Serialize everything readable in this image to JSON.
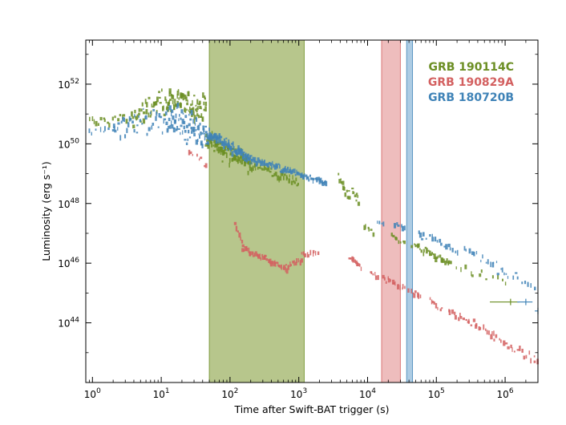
{
  "chart_data": {
    "type": "scatter",
    "title": "",
    "xlabel": "Time after Swift-BAT trigger (s)",
    "ylabel": "Luminosity (erg s⁻¹)",
    "xscale": "log",
    "yscale": "log",
    "xlim": [
      0.8,
      3000000
    ],
    "ylim": [
      1e+42,
      3e+53
    ],
    "x_ticks": [
      {
        "value": 1,
        "base": "10",
        "exp": "0"
      },
      {
        "value": 10,
        "base": "10",
        "exp": "1"
      },
      {
        "value": 100,
        "base": "10",
        "exp": "2"
      },
      {
        "value": 1000,
        "base": "10",
        "exp": "3"
      },
      {
        "value": 10000,
        "base": "10",
        "exp": "4"
      },
      {
        "value": 100000,
        "base": "10",
        "exp": "5"
      },
      {
        "value": 1000000,
        "base": "10",
        "exp": "6"
      }
    ],
    "y_ticks": [
      {
        "value": 1e+44,
        "base": "10",
        "exp": "44"
      },
      {
        "value": 1e+46,
        "base": "10",
        "exp": "46"
      },
      {
        "value": 1e+48,
        "base": "10",
        "exp": "48"
      },
      {
        "value": 1e+50,
        "base": "10",
        "exp": "50"
      },
      {
        "value": 1e+52,
        "base": "10",
        "exp": "52"
      }
    ],
    "legend_position": "top-right",
    "series": [
      {
        "name": "GRB 190114C",
        "color": "#6b8e23",
        "band_color": "#9bb060",
        "band_range": [
          50,
          1200
        ],
        "segments": [
          {
            "x0": 0.9,
            "x1": 4,
            "y0": 5e+50,
            "y1": 8e+50,
            "scatter": 0.25,
            "n": 20
          },
          {
            "x0": 4,
            "x1": 12,
            "y0": 8e+50,
            "y1": 3e+51,
            "scatter": 0.4,
            "n": 35
          },
          {
            "x0": 12,
            "x1": 45,
            "y0": 3e+51,
            "y1": 1.5e+51,
            "scatter": 0.5,
            "n": 80
          },
          {
            "x0": 45,
            "x1": 200,
            "y0": 1.5e+50,
            "y1": 2e+49,
            "scatter": 0.3,
            "n": 80
          },
          {
            "x0": 200,
            "x1": 1000,
            "y0": 2e+49,
            "y1": 5e+48,
            "scatter": 0.15,
            "n": 40
          },
          {
            "x0": 3800,
            "x1": 5500,
            "y0": 6e+48,
            "y1": 1.5e+48,
            "scatter": 0.25,
            "n": 12
          },
          {
            "x0": 6000,
            "x1": 7500,
            "y0": 3e+48,
            "y1": 1e+48,
            "scatter": 0.2,
            "n": 8
          },
          {
            "x0": 9000,
            "x1": 12000,
            "y0": 2e+47,
            "y1": 1e+47,
            "scatter": 0.1,
            "n": 6
          },
          {
            "x0": 22000,
            "x1": 35000,
            "y0": 8e+46,
            "y1": 5e+46,
            "scatter": 0.1,
            "n": 8
          },
          {
            "x0": 45000,
            "x1": 160000,
            "y0": 4e+46,
            "y1": 1e+46,
            "scatter": 0.15,
            "n": 30
          },
          {
            "x0": 200000,
            "x1": 1000000,
            "y0": 8e+45,
            "y1": 2e+45,
            "scatter": 0.15,
            "n": 12
          }
        ],
        "errorbars": [
          {
            "x": 1200000,
            "y": 5e+44,
            "xerr_low": 600000,
            "xerr_high": 400000
          }
        ]
      },
      {
        "name": "GRB 190829A",
        "color": "#d36060",
        "band_color": "#e8a3a3",
        "band_range": [
          16000,
          30000
        ],
        "segments": [
          {
            "x0": 25,
            "x1": 45,
            "y0": 6e+49,
            "y1": 1.5e+49,
            "scatter": 0.2,
            "n": 8
          },
          {
            "x0": 120,
            "x1": 150,
            "y0": 2e+47,
            "y1": 5e+46,
            "scatter": 0.08,
            "n": 6
          },
          {
            "x0": 150,
            "x1": 700,
            "y0": 3e+46,
            "y1": 6e+45,
            "scatter": 0.1,
            "n": 45
          },
          {
            "x0": 700,
            "x1": 1100,
            "y0": 8e+45,
            "y1": 1.2e+46,
            "scatter": 0.08,
            "n": 10
          },
          {
            "x0": 1100,
            "x1": 1900,
            "y0": 2e+46,
            "y1": 2.5e+46,
            "scatter": 0.1,
            "n": 10
          },
          {
            "x0": 5500,
            "x1": 8000,
            "y0": 1.5e+46,
            "y1": 8e+45,
            "scatter": 0.1,
            "n": 10
          },
          {
            "x0": 11000,
            "x1": 14000,
            "y0": 5e+45,
            "y1": 3e+45,
            "scatter": 0.1,
            "n": 6
          },
          {
            "x0": 17000,
            "x1": 35000,
            "y0": 3e+45,
            "y1": 1.5e+45,
            "scatter": 0.1,
            "n": 15
          },
          {
            "x0": 40000,
            "x1": 60000,
            "y0": 1.2e+45,
            "y1": 7e+44,
            "scatter": 0.1,
            "n": 8
          },
          {
            "x0": 80000,
            "x1": 120000,
            "y0": 6e+44,
            "y1": 3e+44,
            "scatter": 0.1,
            "n": 8
          },
          {
            "x0": 150000,
            "x1": 700000,
            "y0": 2.5e+44,
            "y1": 4e+43,
            "scatter": 0.12,
            "n": 25
          },
          {
            "x0": 700000,
            "x1": 3000000,
            "y0": 3e+43,
            "y1": 5e+42,
            "scatter": 0.12,
            "n": 20
          }
        ],
        "errorbars": []
      },
      {
        "name": "GRB 180720B",
        "color": "#3f83b7",
        "band_color": "#8db8da",
        "band_range": [
          37000,
          45000
        ],
        "segments": [
          {
            "x0": 0.9,
            "x1": 2,
            "y0": 2e+50,
            "y1": 3e+50,
            "scatter": 0.25,
            "n": 8
          },
          {
            "x0": 2,
            "x1": 12,
            "y0": 3e+50,
            "y1": 8e+50,
            "scatter": 0.45,
            "n": 40
          },
          {
            "x0": 12,
            "x1": 50,
            "y0": 8e+50,
            "y1": 2e+50,
            "scatter": 0.5,
            "n": 80
          },
          {
            "x0": 50,
            "x1": 200,
            "y0": 2e+50,
            "y1": 3e+49,
            "scatter": 0.2,
            "n": 90
          },
          {
            "x0": 200,
            "x1": 2500,
            "y0": 3e+49,
            "y1": 5e+48,
            "scatter": 0.1,
            "n": 90
          },
          {
            "x0": 14000,
            "x1": 17000,
            "y0": 3e+47,
            "y1": 2e+47,
            "scatter": 0.1,
            "n": 4
          },
          {
            "x0": 25000,
            "x1": 35000,
            "y0": 2e+47,
            "y1": 1.3e+47,
            "scatter": 0.1,
            "n": 6
          },
          {
            "x0": 55000,
            "x1": 70000,
            "y0": 1e+47,
            "y1": 7e+46,
            "scatter": 0.1,
            "n": 5
          },
          {
            "x0": 80000,
            "x1": 110000,
            "y0": 8e+46,
            "y1": 5e+46,
            "scatter": 0.1,
            "n": 6
          },
          {
            "x0": 120000,
            "x1": 200000,
            "y0": 4e+46,
            "y1": 2.5e+46,
            "scatter": 0.1,
            "n": 8
          },
          {
            "x0": 250000,
            "x1": 400000,
            "y0": 3e+46,
            "y1": 1.8e+46,
            "scatter": 0.1,
            "n": 6
          },
          {
            "x0": 450000,
            "x1": 1000000,
            "y0": 1.5e+46,
            "y1": 5e+45,
            "scatter": 0.15,
            "n": 12
          },
          {
            "x0": 1000000,
            "x1": 2800000,
            "y0": 4e+45,
            "y1": 1.5e+45,
            "scatter": 0.15,
            "n": 10
          }
        ],
        "errorbars": [
          {
            "x": 2000000,
            "y": 5e+44,
            "xerr_low": 500000,
            "xerr_high": 500000
          },
          {
            "x": 3000000,
            "y": 2.5e+44,
            "xerr_low": 300000,
            "xerr_high": 0
          }
        ]
      }
    ]
  }
}
